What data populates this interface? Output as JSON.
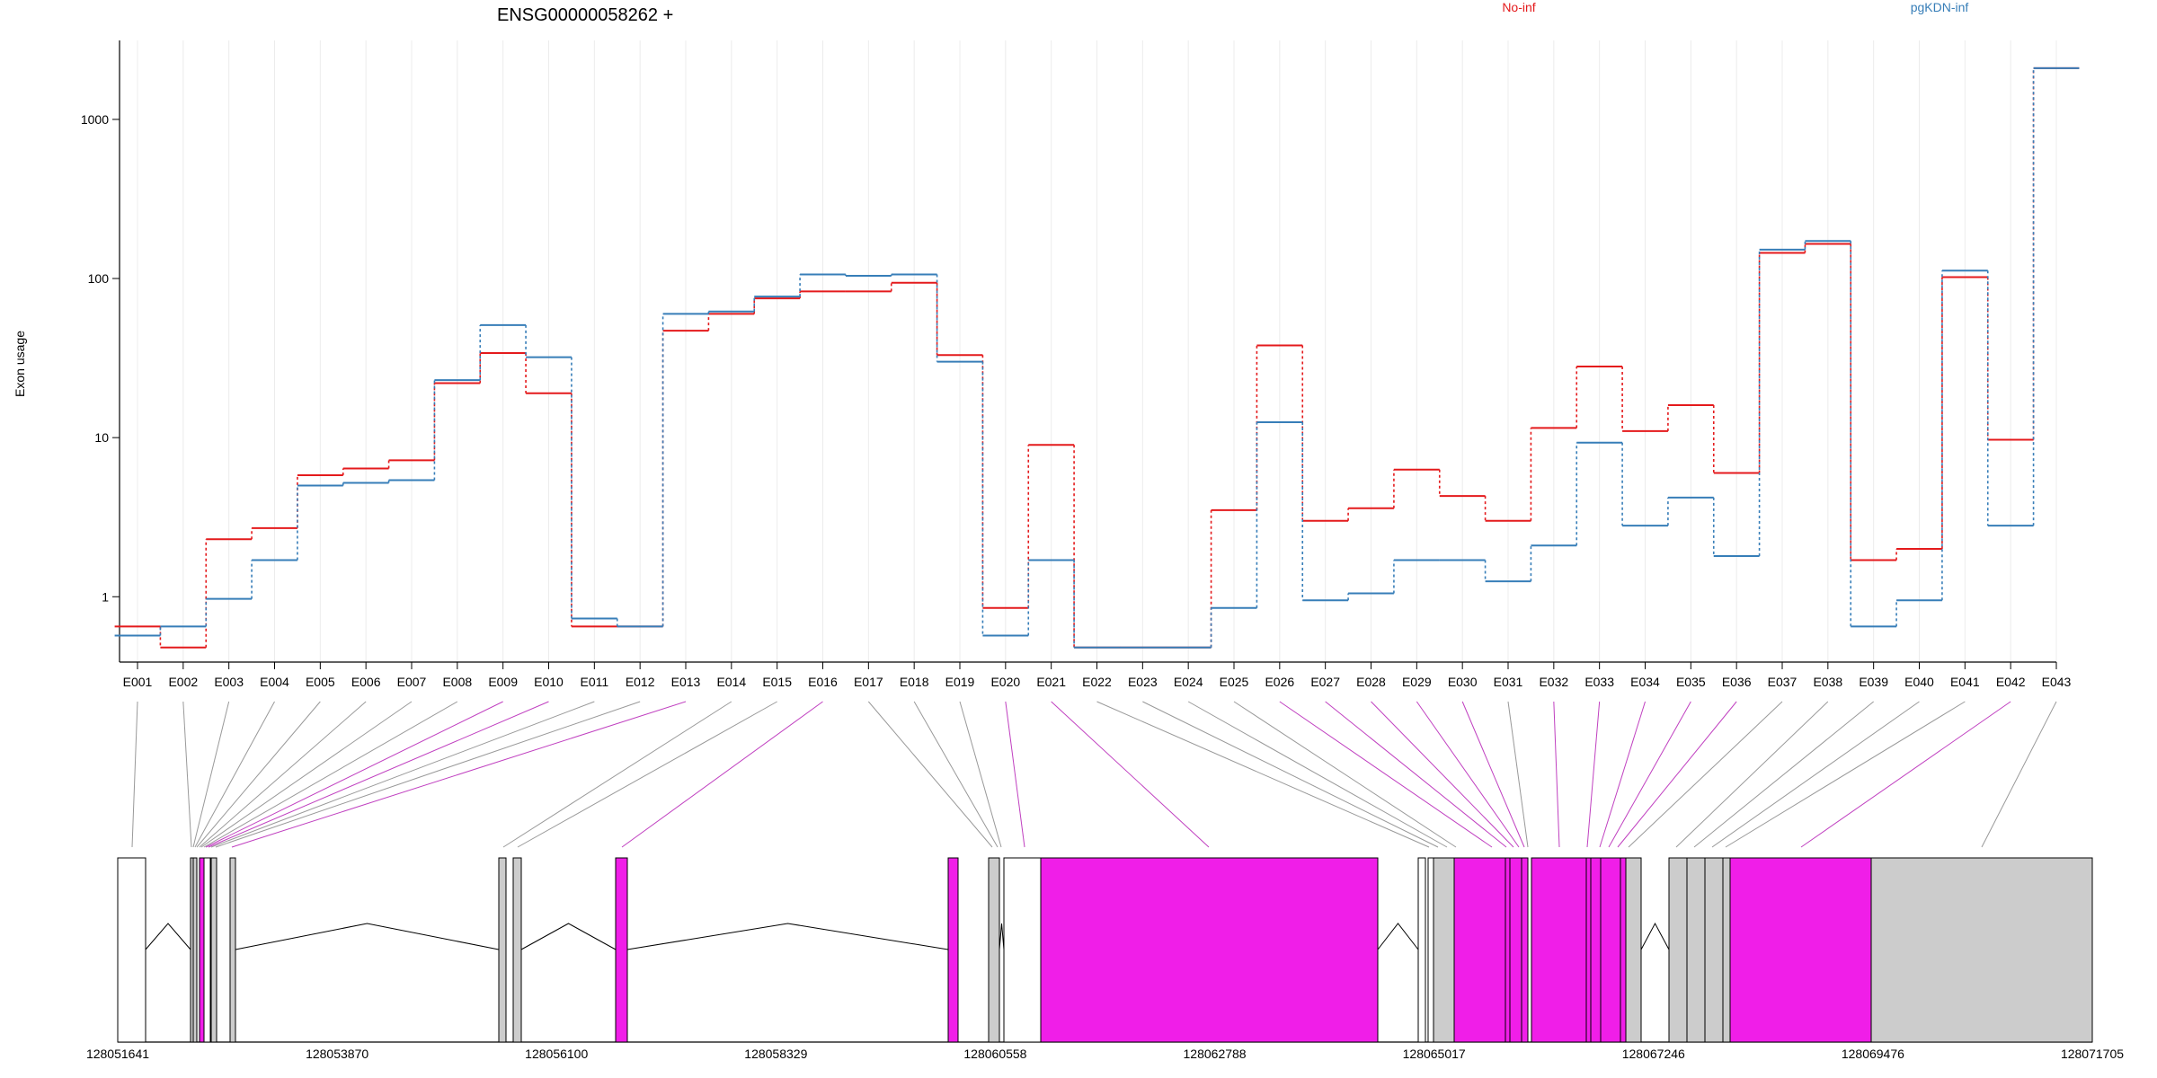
{
  "chart_data": {
    "type": "line",
    "title": "ENSG00000058262 +",
    "ylabel": "Exon usage",
    "yscale": "log",
    "ylim": [
      0.42,
      2900
    ],
    "y_ticks": [
      1,
      10,
      100,
      1000
    ],
    "y_tick_labels": [
      "1",
      "10",
      "100",
      "1000"
    ],
    "grid": "vertical-light",
    "legend": "top",
    "categories": [
      "E001",
      "E002",
      "E003",
      "E004",
      "E005",
      "E006",
      "E007",
      "E008",
      "E009",
      "E010",
      "E011",
      "E012",
      "E013",
      "E014",
      "E015",
      "E016",
      "E017",
      "E018",
      "E019",
      "E020",
      "E021",
      "E022",
      "E023",
      "E024",
      "E025",
      "E026",
      "E027",
      "E028",
      "E029",
      "E030",
      "E031",
      "E032",
      "E033",
      "E034",
      "E035",
      "E036",
      "E037",
      "E038",
      "E039",
      "E040",
      "E041",
      "E042",
      "E043"
    ],
    "series": [
      {
        "name": "No-inf",
        "color": "#e41a1c",
        "values": [
          0.65,
          0.48,
          2.3,
          2.7,
          5.8,
          6.4,
          7.2,
          22,
          34,
          19,
          0.65,
          0.65,
          47,
          60,
          75,
          83,
          83,
          94,
          33,
          0.85,
          9.0,
          0.48,
          0.48,
          0.48,
          3.5,
          38,
          3.0,
          3.6,
          6.3,
          4.3,
          3.0,
          11.5,
          28,
          11,
          16,
          6.0,
          145,
          165,
          1.7,
          2.0,
          102,
          9.7,
          2100
        ]
      },
      {
        "name": "pgKDN-inf",
        "color": "#377eb8",
        "values": [
          0.57,
          0.65,
          0.97,
          1.7,
          5.0,
          5.2,
          5.4,
          23,
          51,
          32,
          0.73,
          0.65,
          60,
          62,
          77,
          106,
          104,
          106,
          30,
          0.57,
          1.7,
          0.48,
          0.48,
          0.48,
          0.85,
          12.5,
          0.95,
          1.05,
          1.7,
          1.7,
          1.25,
          2.1,
          9.3,
          2.8,
          4.2,
          1.8,
          152,
          172,
          0.65,
          0.95,
          112,
          2.8,
          2100
        ]
      }
    ]
  },
  "gene_model": {
    "coordinate_labels": [
      "128051641",
      "128053870",
      "128056100",
      "128058329",
      "128060558",
      "128062788",
      "128065017",
      "128067246",
      "128069476",
      "128071705"
    ],
    "colors": {
      "tested": "#f01ee8",
      "other": "#cccccc",
      "utr": "#ffffff",
      "connector_significant": "#c040c0",
      "connector": "#999999"
    }
  }
}
